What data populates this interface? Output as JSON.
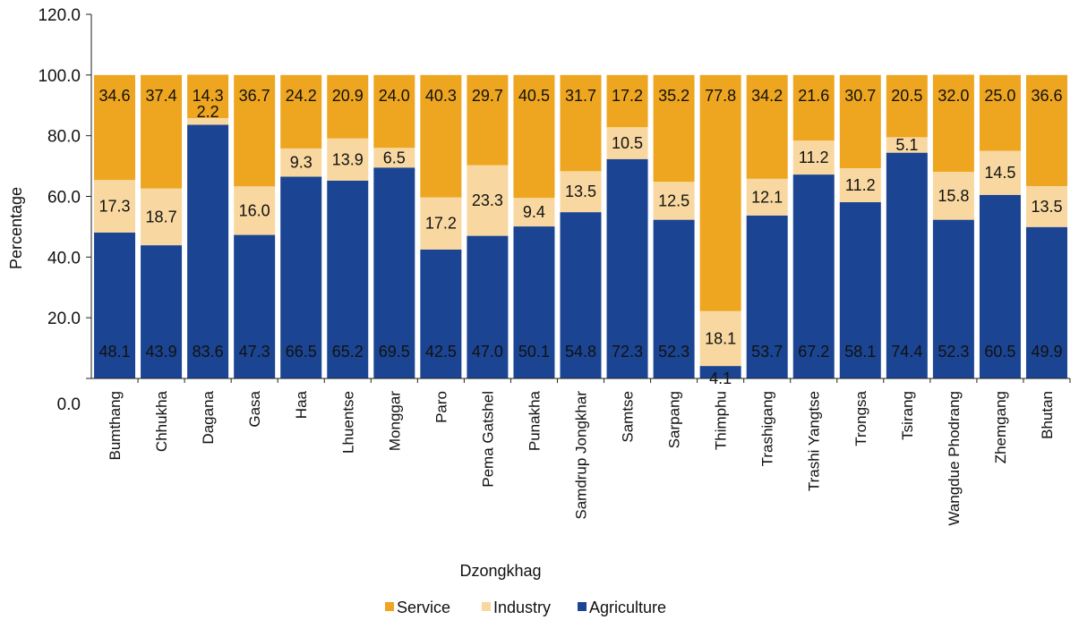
{
  "chart_data": {
    "type": "bar",
    "stacked": true,
    "title": "",
    "xlabel": "Dzongkhag",
    "ylabel": "Percentage",
    "ylim": [
      0,
      120
    ],
    "yticks": [
      "0.0",
      "20.0",
      "40.0",
      "60.0",
      "80.0",
      "100.0",
      "120.0"
    ],
    "grid": false,
    "legend_position": "bottom",
    "categories": [
      "Bumthang",
      "Chhukha",
      "Dagana",
      "Gasa",
      "Haa",
      "Lhuentse",
      "Monggar",
      "Paro",
      "Pema Gatshel",
      "Punakha",
      "Samdrup Jongkhar",
      "Samtse",
      "Sarpang",
      "Thimphu",
      "Trashigang",
      "Trashi Yangtse",
      "Trongsa",
      "Tsirang",
      "Wangdue Phodrang",
      "Zhemgang",
      "Bhutan"
    ],
    "series": [
      {
        "name": "Agriculture",
        "color": "#1b4592",
        "label_color": "#ffffff",
        "values": [
          48.1,
          43.9,
          83.6,
          47.3,
          66.5,
          65.2,
          69.5,
          42.5,
          47.0,
          50.1,
          54.8,
          72.3,
          52.3,
          4.1,
          53.7,
          67.2,
          58.1,
          74.4,
          52.3,
          60.5,
          49.9
        ]
      },
      {
        "name": "Industry",
        "color": "#f8d8a0",
        "label_color": "#111111",
        "values": [
          17.3,
          18.7,
          2.2,
          16.0,
          9.3,
          13.9,
          6.5,
          17.2,
          23.3,
          9.4,
          13.5,
          10.5,
          12.5,
          18.1,
          12.1,
          11.2,
          11.2,
          5.1,
          15.8,
          14.5,
          13.5
        ]
      },
      {
        "name": "Service",
        "color": "#eea51f",
        "label_color": "#111111",
        "values": [
          34.6,
          37.4,
          14.3,
          36.7,
          24.2,
          20.9,
          24.0,
          40.3,
          29.7,
          40.5,
          31.7,
          17.2,
          35.2,
          77.8,
          34.2,
          21.6,
          30.7,
          20.5,
          32.0,
          25.0,
          36.6
        ]
      }
    ],
    "legend": [
      "Service",
      "Industry",
      "Agriculture"
    ]
  }
}
